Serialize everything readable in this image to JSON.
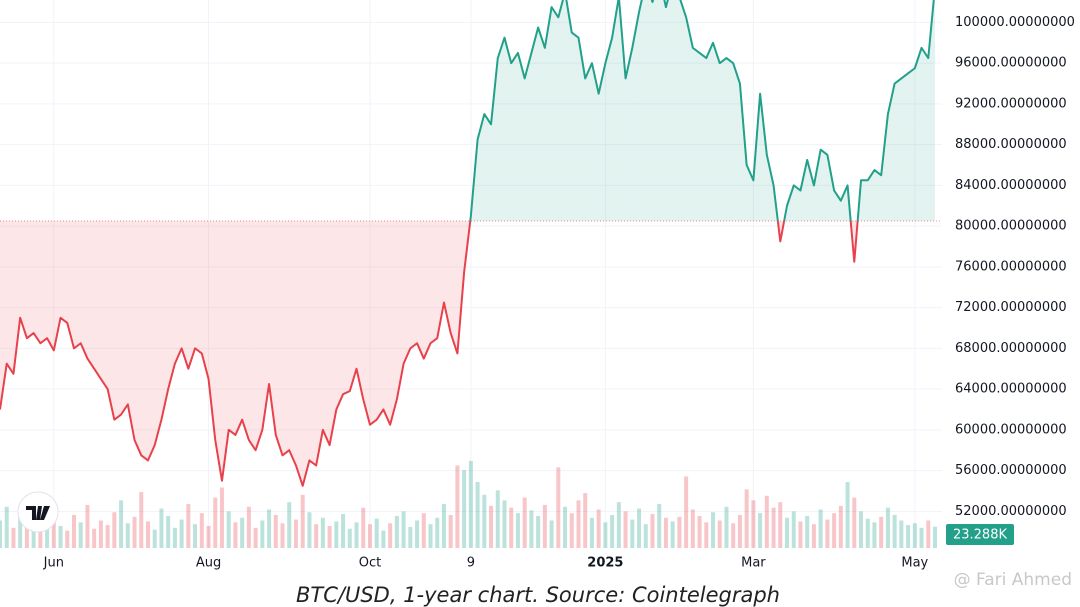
{
  "chart_data": {
    "type": "baseline",
    "categories": [
      null,
      null,
      null,
      null,
      null,
      null,
      null,
      null,
      "Jun",
      null,
      null,
      null,
      null,
      null,
      null,
      null,
      null,
      null,
      null,
      null,
      null,
      null,
      null,
      null,
      null,
      null,
      null,
      null,
      null,
      null,
      null,
      "Aug",
      null,
      null,
      null,
      null,
      null,
      null,
      null,
      null,
      null,
      null,
      null,
      null,
      null,
      null,
      null,
      null,
      null,
      null,
      null,
      null,
      null,
      null,
      null,
      "Oct",
      null,
      null,
      null,
      null,
      null,
      null,
      null,
      null,
      null,
      null,
      null,
      null,
      null,
      null,
      "9",
      null,
      null,
      null,
      null,
      null,
      null,
      null,
      null,
      null,
      null,
      null,
      null,
      null,
      null,
      null,
      null,
      null,
      null,
      null,
      "2025",
      null,
      null,
      null,
      null,
      null,
      null,
      null,
      null,
      null,
      null,
      null,
      null,
      null,
      null,
      null,
      null,
      null,
      null,
      null,
      null,
      null,
      "Mar",
      null,
      null,
      null,
      null,
      null,
      null,
      null,
      null,
      null,
      null,
      null,
      null,
      null,
      null,
      null,
      null,
      null,
      null,
      null,
      null,
      null,
      null,
      null,
      "May",
      null,
      null,
      null
    ],
    "values": [
      62000,
      66500,
      65500,
      71000,
      69000,
      69500,
      68500,
      69000,
      67800,
      71000,
      70500,
      68000,
      68500,
      67000,
      66000,
      65000,
      64000,
      61000,
      61500,
      62500,
      59000,
      57500,
      57000,
      58500,
      61000,
      64000,
      66500,
      68000,
      66000,
      68000,
      67500,
      65000,
      59000,
      55000,
      60000,
      59500,
      61000,
      59000,
      58000,
      60000,
      64500,
      59500,
      57500,
      58000,
      56500,
      54500,
      57000,
      56500,
      60000,
      58500,
      62000,
      63500,
      63800,
      66000,
      63000,
      60500,
      61000,
      62000,
      60500,
      63000,
      66500,
      68000,
      68500,
      67000,
      68500,
      69000,
      72500,
      69500,
      67500,
      75500,
      81000,
      88500,
      91000,
      90000,
      96500,
      98500,
      96000,
      97000,
      94500,
      97000,
      99500,
      97500,
      101500,
      100500,
      103000,
      99000,
      98500,
      94500,
      96000,
      93000,
      96000,
      98500,
      102500,
      94500,
      97500,
      101000,
      104000,
      102000,
      104500,
      101500,
      104000,
      102500,
      100500,
      97500,
      97000,
      96500,
      98000,
      96000,
      96500,
      96000,
      94000,
      86000,
      84500,
      93000,
      87000,
      84000,
      78500,
      82000,
      84000,
      83500,
      86500,
      84000,
      87500,
      87000,
      83500,
      82500,
      84000,
      76500,
      84500,
      84500,
      85500,
      85000,
      91000,
      94000,
      94500,
      95000,
      95500,
      97500,
      96500,
      103500
    ],
    "baseline": 80500,
    "up_color": "#22a08a",
    "down_color": "#e8414b",
    "ylim": [
      48400,
      102200
    ],
    "yticks": [
      {
        "value": 52000,
        "label": "52000.00000000"
      },
      {
        "value": 56000,
        "label": "56000.00000000"
      },
      {
        "value": 60000,
        "label": "60000.00000000"
      },
      {
        "value": 64000,
        "label": "64000.00000000"
      },
      {
        "value": 68000,
        "label": "68000.00000000"
      },
      {
        "value": 72000,
        "label": "72000.00000000"
      },
      {
        "value": 76000,
        "label": "76000.00000000"
      },
      {
        "value": 80000,
        "label": "80000.00000000"
      },
      {
        "value": 84000,
        "label": "84000.00000000"
      },
      {
        "value": 88000,
        "label": "88000.00000000"
      },
      {
        "value": 92000,
        "label": "92000.00000000"
      },
      {
        "value": 96000,
        "label": "96000.00000000"
      },
      {
        "value": 100000,
        "label": "100000.00000000"
      }
    ],
    "grid": true,
    "volume": {
      "values": [
        30000,
        45000,
        22000,
        38000,
        51000,
        26000,
        18000,
        33000,
        41000,
        24000,
        19000,
        36000,
        28000,
        47000,
        21000,
        30000,
        25000,
        39000,
        52000,
        27000,
        34000,
        61000,
        29000,
        20000,
        43000,
        35000,
        22000,
        31000,
        48000,
        26000,
        38000,
        24000,
        55000,
        66000,
        40000,
        28000,
        33000,
        45000,
        22000,
        30000,
        42000,
        36000,
        27000,
        50000,
        31000,
        58000,
        39000,
        26000,
        33000,
        24000,
        29000,
        37000,
        21000,
        28000,
        44000,
        26000,
        32000,
        19000,
        27000,
        35000,
        40000,
        23000,
        30000,
        38000,
        26000,
        33000,
        48000,
        36000,
        90000,
        85000,
        95000,
        72000,
        58000,
        46000,
        63000,
        52000,
        44000,
        38000,
        55000,
        41000,
        35000,
        47000,
        30000,
        88000,
        45000,
        38000,
        52000,
        60000,
        33000,
        42000,
        28000,
        36000,
        50000,
        40000,
        31000,
        43000,
        26000,
        37000,
        48000,
        33000,
        29000,
        34000,
        78000,
        42000,
        35000,
        28000,
        39000,
        30000,
        45000,
        27000,
        36000,
        64000,
        52000,
        38000,
        57000,
        44000,
        50000,
        33000,
        40000,
        29000,
        35000,
        26000,
        42000,
        31000,
        38000,
        46000,
        72000,
        55000,
        40000,
        32000,
        28000,
        34000,
        44000,
        36000,
        30000,
        25000,
        27000,
        22000,
        30000,
        23288
      ],
      "vlim": [
        0,
        120000
      ],
      "last_label": "23.288K"
    },
    "caption": "BTC/USD, 1-year chart. Source: Cointelegraph",
    "watermark": "@ Fari Ahmed"
  }
}
